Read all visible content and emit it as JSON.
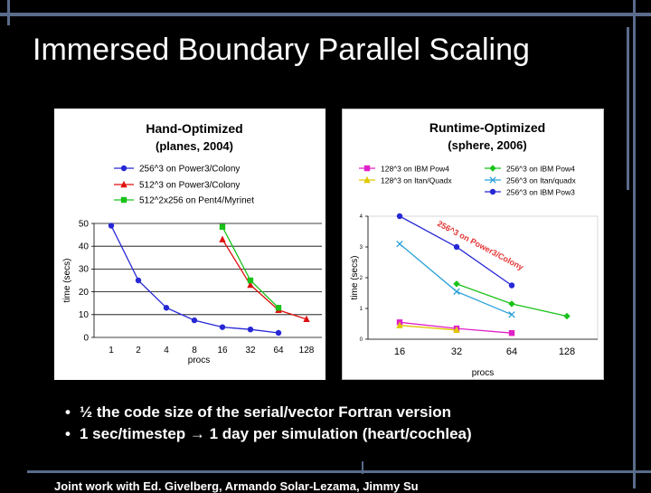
{
  "slide": {
    "title": "Immersed Boundary Parallel Scaling",
    "bullets": [
      "½ the code size of the serial/vector Fortran version",
      "1 sec/timestep → 1 day per simulation (heart/cochlea)"
    ],
    "footer": "Joint work with Ed. Givelberg, Armando Solar-Lezama, Jimmy Su"
  },
  "chart_data": [
    {
      "type": "line",
      "title": "Hand-Optimized",
      "subtitle": "(planes, 2004)",
      "xlabel": "procs",
      "ylabel": "time (secs)",
      "categories": [
        "1",
        "2",
        "4",
        "8",
        "16",
        "32",
        "64",
        "128"
      ],
      "ylim": [
        0,
        50
      ],
      "yticks": [
        0,
        10,
        20,
        30,
        40,
        50
      ],
      "grid": true,
      "legend": "top",
      "series": [
        {
          "name": "256^3 on Power3/Colony",
          "color": "#2727d6",
          "marker": "circle",
          "values": [
            49,
            25,
            13,
            7.5,
            4.5,
            3.5,
            2,
            null
          ]
        },
        {
          "name": "512^3 on Power3/Colony",
          "color": "#e01010",
          "marker": "triangle",
          "values": [
            null,
            null,
            null,
            null,
            43,
            23,
            12,
            8
          ]
        },
        {
          "name": "512^2x256 on Pent4/Myrinet",
          "color": "#19c219",
          "marker": "square",
          "values": [
            null,
            null,
            null,
            null,
            48.5,
            25,
            13,
            null
          ]
        }
      ]
    },
    {
      "type": "line",
      "title": "Runtime-Optimized",
      "subtitle": "(sphere, 2006)",
      "xlabel": "procs",
      "ylabel": "time (secs)",
      "categories": [
        "16",
        "32",
        "64",
        "128"
      ],
      "ylim": [
        0,
        4
      ],
      "yticks": [
        0,
        1,
        2,
        3,
        4
      ],
      "grid": false,
      "legend": "top",
      "annotation": "256^3 on Power3/Colony",
      "series": [
        {
          "name": "128^3 on IBM Pow4",
          "color": "#e020c8",
          "marker": "square",
          "values": [
            0.55,
            0.35,
            0.2,
            null
          ]
        },
        {
          "name": "128^3 on Itan/Quadx",
          "color": "#e0c800",
          "marker": "triangle",
          "values": [
            0.45,
            0.3,
            null,
            null
          ]
        },
        {
          "name": "256^3 on IBM Pow4",
          "color": "#19c219",
          "marker": "diamond",
          "values": [
            null,
            1.8,
            1.15,
            0.75
          ]
        },
        {
          "name": "256^3 on Itan/quadx",
          "color": "#2aa0d8",
          "marker": "x",
          "values": [
            3.1,
            1.55,
            0.8,
            null
          ]
        },
        {
          "name": "256^3 on IBM Pow3",
          "color": "#2727d6",
          "marker": "circle",
          "values": [
            4.0,
            3.0,
            1.75,
            null
          ]
        }
      ]
    }
  ]
}
